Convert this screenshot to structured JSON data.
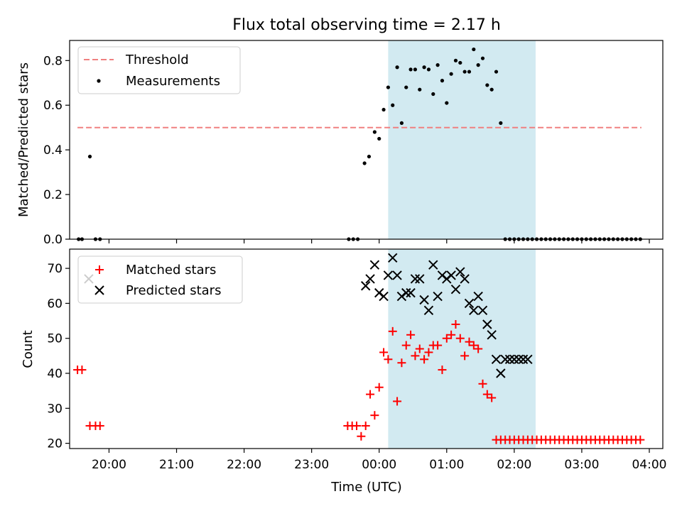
{
  "chart_data": [
    {
      "type": "scatter",
      "title": "Flux total observing time = 2.17 h",
      "xlabel": "",
      "ylabel": "Matched/Predicted stars",
      "xlim": [
        "19:25",
        "04:12"
      ],
      "ylim": [
        0,
        0.89
      ],
      "yticks": [
        0.0,
        0.2,
        0.4,
        0.6,
        0.8
      ],
      "ytick_labels": [
        "0.0",
        "0.2",
        "0.4",
        "0.6",
        "0.8"
      ],
      "shaded_interval": {
        "start": "00:08",
        "end": "02:19",
        "color": "#add8e6"
      },
      "legend": {
        "placement": "top-left",
        "entries": [
          "Threshold",
          "Measurements"
        ]
      },
      "colors": {
        "threshold": "#f08080",
        "measurements": "#000000",
        "shade": "#add8e6"
      },
      "series": [
        {
          "name": "Threshold",
          "style": "dashed-line",
          "x": [
            "19:32",
            "03:53"
          ],
          "y": [
            0.5,
            0.5
          ]
        },
        {
          "name": "Measurements",
          "style": "points",
          "x": [
            "19:33",
            "19:36",
            "19:43",
            "19:48",
            "19:52",
            "23:33",
            "23:37",
            "23:41",
            "23:47",
            "23:51",
            "23:56",
            "00:00",
            "00:04",
            "00:08",
            "00:12",
            "00:16",
            "00:20",
            "00:24",
            "00:28",
            "00:32",
            "00:36",
            "00:40",
            "00:44",
            "00:48",
            "00:52",
            "00:56",
            "01:00",
            "01:04",
            "01:08",
            "01:12",
            "01:16",
            "01:20",
            "01:24",
            "01:28",
            "01:32",
            "01:36",
            "01:40",
            "01:44",
            "01:48",
            "01:52",
            "01:56",
            "02:00",
            "02:04",
            "02:08",
            "02:12",
            "02:16",
            "02:20",
            "02:24",
            "02:28",
            "02:32",
            "02:36",
            "02:40",
            "02:44",
            "02:48",
            "02:52",
            "02:56",
            "03:00",
            "03:04",
            "03:08",
            "03:12",
            "03:16",
            "03:20",
            "03:24",
            "03:28",
            "03:32",
            "03:36",
            "03:40",
            "03:44",
            "03:48",
            "03:52"
          ],
          "y": [
            0,
            0,
            0.37,
            0,
            0,
            0,
            0,
            0,
            0.34,
            0.37,
            0.48,
            0.45,
            0.58,
            0.68,
            0.6,
            0.77,
            0.52,
            0.68,
            0.76,
            0.76,
            0.67,
            0.77,
            0.76,
            0.65,
            0.78,
            0.71,
            0.61,
            0.74,
            0.8,
            0.79,
            0.75,
            0.75,
            0.85,
            0.78,
            0.81,
            0.69,
            0.67,
            0.75,
            0.52,
            0,
            0,
            0,
            0,
            0,
            0,
            0,
            0,
            0,
            0,
            0,
            0,
            0,
            0,
            0,
            0,
            0,
            0,
            0,
            0,
            0,
            0,
            0,
            0,
            0,
            0,
            0,
            0,
            0,
            0,
            0
          ]
        }
      ]
    },
    {
      "type": "scatter",
      "title": "",
      "xlabel": "Time (UTC)",
      "ylabel": "Count",
      "xlim": [
        "19:25",
        "04:12"
      ],
      "ylim": [
        18.5,
        75.5
      ],
      "yticks": [
        20,
        30,
        40,
        50,
        60,
        70
      ],
      "ytick_labels": [
        "20",
        "30",
        "40",
        "50",
        "60",
        "70"
      ],
      "xticks": [
        "20:00",
        "21:00",
        "22:00",
        "23:00",
        "00:00",
        "01:00",
        "02:00",
        "03:00",
        "04:00"
      ],
      "xtick_labels": [
        "20:00",
        "21:00",
        "22:00",
        "23:00",
        "00:00",
        "01:00",
        "02:00",
        "03:00",
        "04:00"
      ],
      "shaded_interval": {
        "start": "00:08",
        "end": "02:19",
        "color": "#add8e6"
      },
      "legend": {
        "placement": "top-left",
        "entries": [
          "Matched stars",
          "Predicted stars"
        ]
      },
      "colors": {
        "matched": "#ff0000",
        "predicted": "#000000",
        "shade": "#add8e6"
      },
      "series": [
        {
          "name": "Matched stars",
          "marker": "plus",
          "x": [
            "19:32",
            "19:36",
            "19:43",
            "19:48",
            "19:52",
            "23:32",
            "23:36",
            "23:40",
            "23:44",
            "23:48",
            "23:52",
            "23:56",
            "00:00",
            "00:04",
            "00:08",
            "00:12",
            "00:16",
            "00:20",
            "00:24",
            "00:28",
            "00:32",
            "00:36",
            "00:40",
            "00:44",
            "00:48",
            "00:52",
            "00:56",
            "01:00",
            "01:04",
            "01:08",
            "01:12",
            "01:16",
            "01:20",
            "01:24",
            "01:28",
            "01:32",
            "01:36",
            "01:40",
            "01:44",
            "01:48",
            "01:52",
            "01:56",
            "02:00",
            "02:04",
            "02:08",
            "02:12",
            "02:16",
            "02:20",
            "02:24",
            "02:28",
            "02:32",
            "02:36",
            "02:40",
            "02:44",
            "02:48",
            "02:52",
            "02:56",
            "03:00",
            "03:04",
            "03:08",
            "03:12",
            "03:16",
            "03:20",
            "03:24",
            "03:28",
            "03:32",
            "03:36",
            "03:40",
            "03:44",
            "03:48",
            "03:52"
          ],
          "y": [
            41,
            41,
            25,
            25,
            25,
            25,
            25,
            25,
            22,
            25,
            34,
            28,
            36,
            46,
            44,
            52,
            32,
            43,
            48,
            51,
            45,
            47,
            44,
            46,
            48,
            48,
            41,
            50,
            51,
            54,
            50,
            45,
            49,
            48,
            47,
            37,
            34,
            33,
            21,
            21,
            21,
            21,
            21,
            21,
            21,
            21,
            21,
            21,
            21,
            21,
            21,
            21,
            21,
            21,
            21,
            21,
            21,
            21,
            21,
            21,
            21,
            21,
            21,
            21,
            21,
            21,
            21,
            21,
            21,
            21,
            21
          ]
        },
        {
          "name": "Predicted stars",
          "marker": "x",
          "x": [
            "19:42",
            "23:48",
            "23:52",
            "23:56",
            "00:00",
            "00:04",
            "00:08",
            "00:12",
            "00:16",
            "00:20",
            "00:24",
            "00:28",
            "00:32",
            "00:36",
            "00:40",
            "00:44",
            "00:48",
            "00:52",
            "00:56",
            "01:00",
            "01:04",
            "01:08",
            "01:12",
            "01:16",
            "01:20",
            "01:24",
            "01:28",
            "01:32",
            "01:36",
            "01:40",
            "01:44",
            "01:48",
            "01:52",
            "01:56",
            "02:00",
            "02:04",
            "02:08",
            "02:12"
          ],
          "y": [
            67,
            65,
            67,
            71,
            63,
            62,
            68,
            73,
            68,
            62,
            63,
            63,
            67,
            67,
            61,
            58,
            71,
            62,
            68,
            67,
            68,
            64,
            69,
            67,
            60,
            58,
            62,
            58,
            54,
            51,
            44,
            40,
            44,
            44,
            44,
            44,
            44,
            44
          ]
        }
      ]
    }
  ]
}
